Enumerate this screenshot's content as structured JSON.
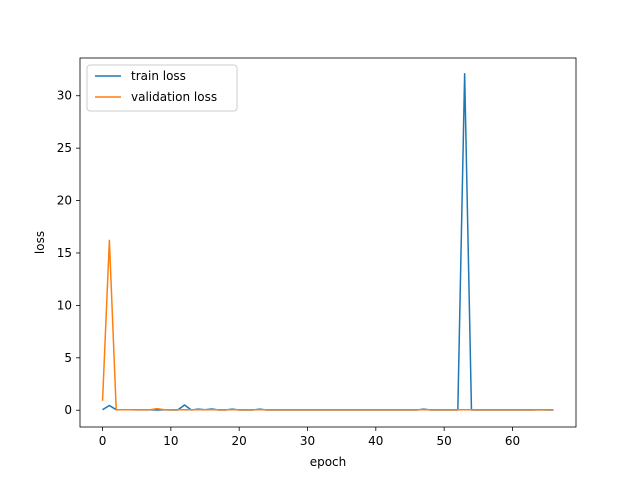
{
  "chart_data": {
    "type": "line",
    "title": "",
    "xlabel": "epoch",
    "ylabel": "loss",
    "xlim": [
      -3.3,
      69.3
    ],
    "ylim": [
      -1.6,
      33.6
    ],
    "xticks": [
      0,
      10,
      20,
      30,
      40,
      50,
      60
    ],
    "yticks": [
      0,
      5,
      10,
      15,
      20,
      25,
      30
    ],
    "grid": false,
    "legend_position": "top-left",
    "series": [
      {
        "name": "train loss",
        "color": "#1f77b4",
        "x": [
          0,
          1,
          2,
          3,
          4,
          5,
          6,
          7,
          8,
          9,
          10,
          11,
          12,
          13,
          14,
          15,
          16,
          17,
          18,
          19,
          20,
          21,
          22,
          23,
          24,
          25,
          26,
          27,
          28,
          29,
          30,
          31,
          32,
          33,
          34,
          35,
          36,
          37,
          38,
          39,
          40,
          41,
          42,
          43,
          44,
          45,
          46,
          47,
          48,
          49,
          50,
          51,
          52,
          53,
          54,
          55,
          56,
          57,
          58,
          59,
          60,
          61,
          62,
          63,
          64,
          65,
          66
        ],
        "y": [
          0.05,
          0.45,
          0.05,
          0.05,
          0.05,
          0.03,
          0.03,
          0.05,
          0.02,
          0.05,
          0.02,
          0.02,
          0.5,
          0.02,
          0.1,
          0.05,
          0.12,
          0.02,
          0.02,
          0.1,
          0.02,
          0.02,
          0.02,
          0.1,
          0.02,
          0.02,
          0.02,
          0.02,
          0.02,
          0.02,
          0.02,
          0.02,
          0.02,
          0.02,
          0.02,
          0.02,
          0.02,
          0.02,
          0.02,
          0.02,
          0.02,
          0.02,
          0.02,
          0.02,
          0.02,
          0.02,
          0.02,
          0.1,
          0.02,
          0.02,
          0.02,
          0.02,
          0.02,
          32.1,
          0.02,
          0.02,
          0.02,
          0.02,
          0.02,
          0.02,
          0.02,
          0.02,
          0.02,
          0.02,
          0.05,
          0.02,
          0.02
        ]
      },
      {
        "name": "validation loss",
        "color": "#ff7f0e",
        "x": [
          0,
          1,
          2,
          3,
          4,
          5,
          6,
          7,
          8,
          9,
          10,
          11,
          12,
          13,
          14,
          15,
          16,
          17,
          18,
          19,
          20,
          21,
          22,
          23,
          24,
          25,
          26,
          27,
          28,
          29,
          30,
          31,
          32,
          33,
          34,
          35,
          36,
          37,
          38,
          39,
          40,
          41,
          42,
          43,
          44,
          45,
          46,
          47,
          48,
          49,
          50,
          51,
          52,
          53,
          54,
          55,
          56,
          57,
          58,
          59,
          60,
          61,
          62,
          63,
          64,
          65,
          66
        ],
        "y": [
          0.9,
          16.2,
          0.05,
          0.05,
          0.05,
          0.05,
          0.05,
          0.05,
          0.15,
          0.05,
          0.05,
          0.05,
          0.05,
          0.05,
          0.05,
          0.05,
          0.05,
          0.05,
          0.05,
          0.05,
          0.05,
          0.05,
          0.05,
          0.05,
          0.05,
          0.05,
          0.05,
          0.05,
          0.05,
          0.05,
          0.05,
          0.05,
          0.05,
          0.05,
          0.05,
          0.05,
          0.05,
          0.05,
          0.05,
          0.05,
          0.05,
          0.05,
          0.05,
          0.05,
          0.05,
          0.05,
          0.05,
          0.05,
          0.05,
          0.05,
          0.05,
          0.05,
          0.05,
          0.05,
          0.05,
          0.05,
          0.05,
          0.05,
          0.05,
          0.05,
          0.05,
          0.05,
          0.05,
          0.05,
          0.05,
          0.05,
          0.05
        ]
      }
    ]
  }
}
